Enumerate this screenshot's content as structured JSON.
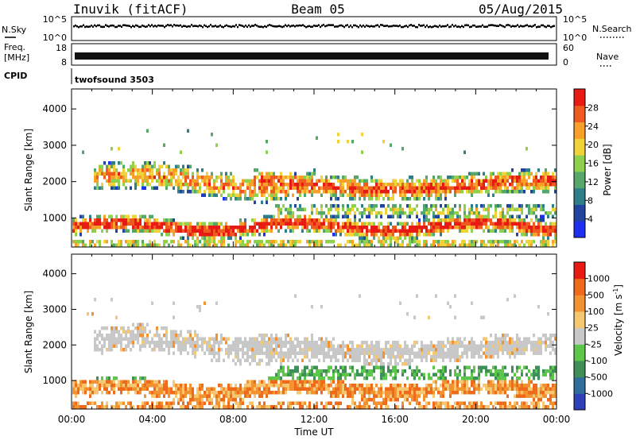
{
  "header": {
    "station": "Inuvik (fitACF)",
    "beam": "Beam 05",
    "date": "05/Aug/2015"
  },
  "nsky_panel": {
    "left_label": "N.Sky",
    "left_ticks": [
      "10^5",
      "10^0"
    ],
    "right_label": "N.Search",
    "right_ticks": [
      "10^5",
      "10^0"
    ]
  },
  "freq_panel": {
    "left_label_1": "Freq.",
    "left_label_2": "[MHz]",
    "left_ticks": [
      "18",
      "8"
    ],
    "right_label": "Nave",
    "right_ticks": [
      "60",
      "0"
    ]
  },
  "cpid": {
    "label": "CPID",
    "value": "twofsound 3503"
  },
  "chart_data": [
    {
      "type": "heatmap",
      "name": "power",
      "ylabel": "Slant Range [km]",
      "ytick_labels": [
        "1000",
        "2000",
        "3000",
        "4000"
      ],
      "ylim": [
        200,
        4550
      ],
      "xlim_hours": [
        0,
        24
      ],
      "colorbar": {
        "label": "Power [dB]",
        "ticks": [
          "4",
          "8",
          "12",
          "16",
          "20",
          "24",
          "28"
        ],
        "range": [
          0,
          32
        ],
        "colors": [
          "#1f2ff0",
          "#22449e",
          "#2f7f8a",
          "#55a86a",
          "#8fd14c",
          "#f0d23a",
          "#f7a02a",
          "#ef5a1e",
          "#e81b14"
        ]
      }
    },
    {
      "type": "heatmap",
      "name": "velocity",
      "ylabel": "Slant Range [km]",
      "ytick_labels": [
        "1000",
        "2000",
        "3000",
        "4000"
      ],
      "ylim": [
        200,
        4550
      ],
      "xlim_hours": [
        0,
        24
      ],
      "xlabel": "Time UT",
      "xtick_labels": [
        "00:00",
        "04:00",
        "08:00",
        "12:00",
        "16:00",
        "20:00",
        "00:00"
      ],
      "colorbar": {
        "label": "Velocity [m s",
        "label_sup": "-1",
        "label_end": "]",
        "ticks": [
          "1000",
          "500",
          "100",
          "25",
          "-25",
          "-100",
          "-500",
          "-1000"
        ],
        "colors": [
          "#2e3fb8",
          "#2f6e9c",
          "#3e8f58",
          "#5ec64a",
          "#c8c8c8",
          "#f4c770",
          "#f29230",
          "#ef6b1c",
          "#e81b14"
        ]
      }
    }
  ]
}
